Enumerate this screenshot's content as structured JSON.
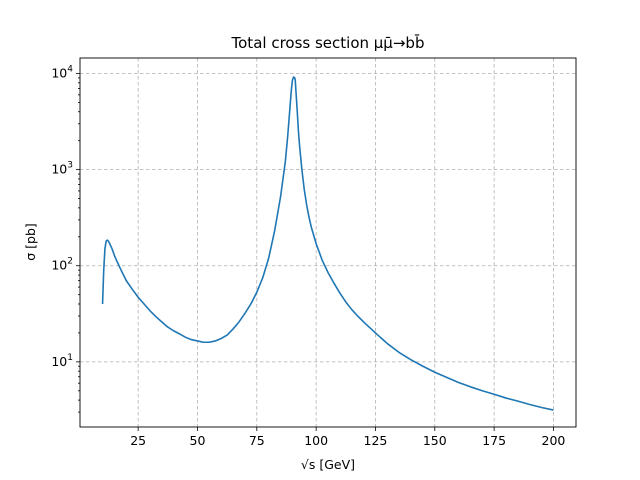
{
  "chart_data": {
    "type": "line",
    "title": "Total cross section μμ̄→bb̄",
    "xlabel": "√s [GeV]",
    "ylabel": "σ [pb]",
    "xlim": [
      0.5,
      209.5
    ],
    "ylim": [
      2.1,
      14500
    ],
    "yscale": "log",
    "grid": true,
    "xticks": [
      25,
      50,
      75,
      100,
      125,
      150,
      175,
      200
    ],
    "yticks": [
      {
        "value": 10,
        "base": "10",
        "exp": "1"
      },
      {
        "value": 100,
        "base": "10",
        "exp": "2"
      },
      {
        "value": 1000,
        "base": "10",
        "exp": "3"
      },
      {
        "value": 10000,
        "base": "10",
        "exp": "4"
      }
    ],
    "color": "#1f77b4",
    "series": [
      {
        "x": [
          10,
          10.5,
          11,
          11.5,
          12,
          12.5,
          13,
          14,
          15,
          16,
          18,
          20,
          22.5,
          25,
          27.5,
          30,
          32.5,
          35,
          37.5,
          40,
          42.5,
          45,
          47.5,
          50,
          52.5,
          55,
          57.5,
          60,
          62.5,
          65,
          67.5,
          70,
          72.5,
          75,
          77.5,
          80,
          82.5,
          85,
          87,
          88,
          89,
          89.5,
          90,
          90.5,
          91,
          91.2,
          91.5,
          92,
          92.5,
          93,
          94,
          95,
          96,
          97,
          98,
          100,
          102.5,
          105,
          107.5,
          110,
          112.5,
          115,
          117.5,
          120,
          125,
          130,
          135,
          140,
          145,
          150,
          155,
          160,
          165,
          170,
          175,
          180,
          185,
          190,
          195,
          200
        ],
        "y": [
          40,
          90,
          150,
          180,
          185,
          180,
          170,
          150,
          128,
          112,
          88,
          70,
          57,
          47,
          40,
          34,
          29.5,
          26,
          23,
          21,
          19.5,
          18,
          17,
          16.5,
          16,
          16,
          16.5,
          17.5,
          19,
          22,
          26,
          32,
          40,
          53,
          75,
          120,
          230,
          520,
          1200,
          2200,
          4500,
          6500,
          8500,
          9200,
          9000,
          8500,
          6500,
          4200,
          2600,
          1800,
          1000,
          620,
          430,
          320,
          250,
          170,
          115,
          85,
          66,
          52,
          42,
          35,
          30,
          26,
          20,
          15.5,
          12.5,
          10.5,
          9,
          7.8,
          6.9,
          6.1,
          5.5,
          5,
          4.6,
          4.2,
          3.9,
          3.6,
          3.35,
          3.15
        ]
      }
    ]
  }
}
